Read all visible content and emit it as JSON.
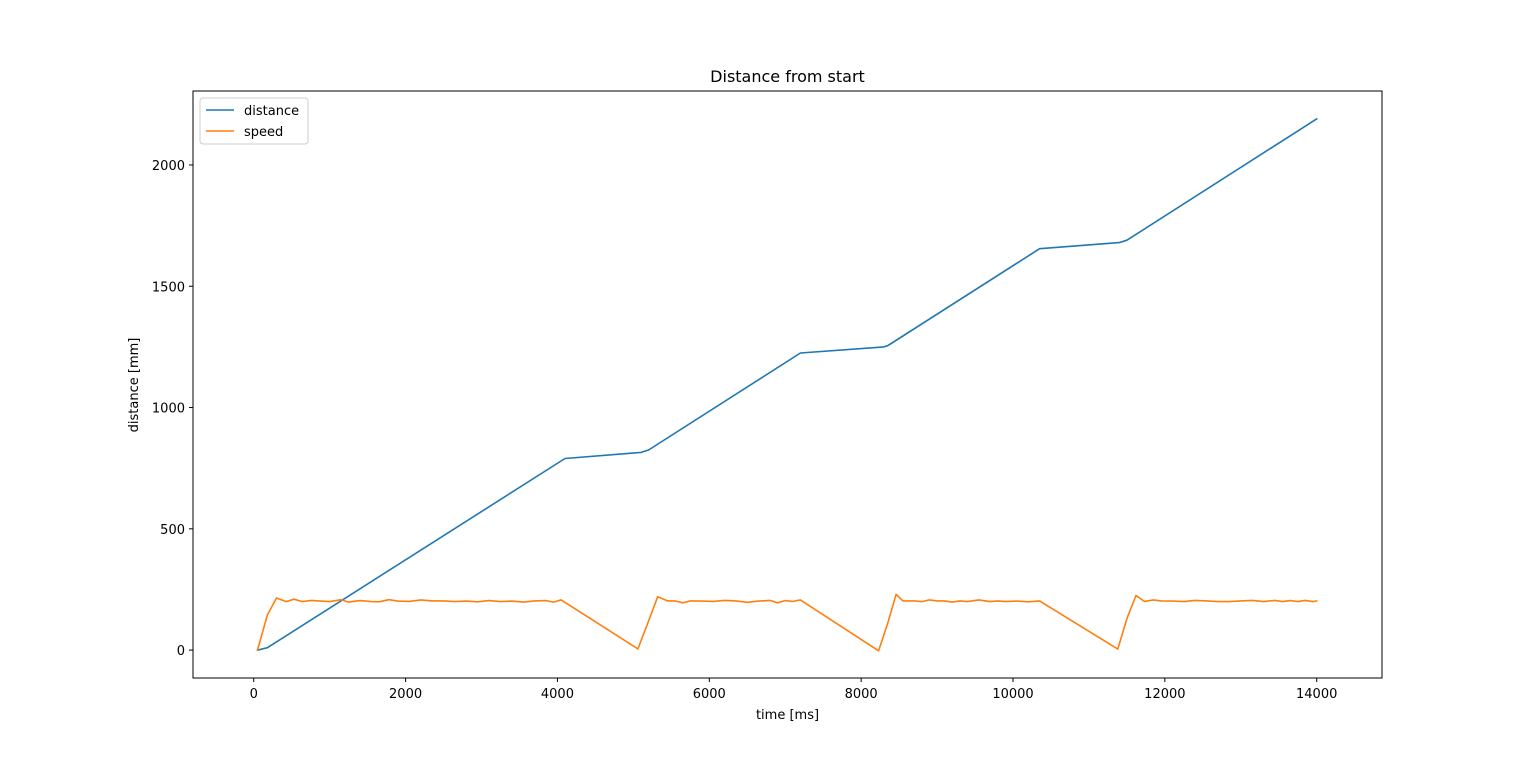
{
  "chart_data": {
    "type": "line",
    "title": "Distance from start",
    "xlabel": "time [ms]",
    "ylabel": "distance [mm]",
    "xlim": [
      -800,
      14860
    ],
    "ylim": [
      -115,
      2305
    ],
    "xticks": [
      0,
      2000,
      4000,
      6000,
      8000,
      10000,
      12000,
      14000
    ],
    "yticks": [
      0,
      500,
      1000,
      1500,
      2000
    ],
    "grid": false,
    "legend_position": "upper left",
    "series": [
      {
        "name": "distance",
        "color": "#1f77b4",
        "x": [
          50,
          180,
          4100,
          5100,
          5200,
          7200,
          8300,
          8350,
          10350,
          11400,
          11500,
          14000
        ],
        "y": [
          0,
          10,
          790,
          815,
          825,
          1225,
          1250,
          1255,
          1655,
          1680,
          1690,
          2190
        ]
      },
      {
        "name": "speed",
        "color": "#ff7f0e",
        "x": [
          50,
          180,
          300,
          430,
          530,
          640,
          760,
          880,
          1000,
          1150,
          1250,
          1400,
          1550,
          1650,
          1780,
          1900,
          2050,
          2200,
          2350,
          2500,
          2650,
          2800,
          2950,
          3100,
          3250,
          3400,
          3550,
          3700,
          3850,
          3950,
          4050,
          5060,
          5200,
          5320,
          5450,
          5550,
          5650,
          5750,
          5900,
          6050,
          6200,
          6350,
          6500,
          6650,
          6800,
          6900,
          7000,
          7100,
          7200,
          8230,
          8350,
          8460,
          8550,
          8700,
          8800,
          8900,
          9000,
          9100,
          9200,
          9300,
          9400,
          9550,
          9700,
          9800,
          9900,
          10050,
          10200,
          10350,
          11380,
          11500,
          11620,
          11730,
          11850,
          11950,
          12100,
          12250,
          12400,
          12550,
          12700,
          12850,
          13000,
          13150,
          13300,
          13450,
          13550,
          13650,
          13750,
          13850,
          13950,
          14000
        ],
        "y": [
          0,
          145,
          215,
          200,
          210,
          200,
          205,
          202,
          200,
          208,
          198,
          204,
          200,
          199,
          208,
          202,
          201,
          207,
          203,
          203,
          200,
          202,
          199,
          204,
          200,
          202,
          198,
          203,
          204,
          198,
          207,
          5,
          120,
          220,
          203,
          203,
          195,
          203,
          202,
          201,
          205,
          203,
          197,
          202,
          205,
          195,
          204,
          201,
          207,
          -3,
          110,
          230,
          203,
          203,
          200,
          207,
          203,
          203,
          198,
          203,
          200,
          207,
          200,
          203,
          200,
          202,
          199,
          203,
          4,
          130,
          225,
          201,
          207,
          203,
          202,
          200,
          205,
          203,
          200,
          200,
          203,
          205,
          200,
          205,
          200,
          204,
          200,
          205,
          200,
          203
        ]
      }
    ]
  }
}
